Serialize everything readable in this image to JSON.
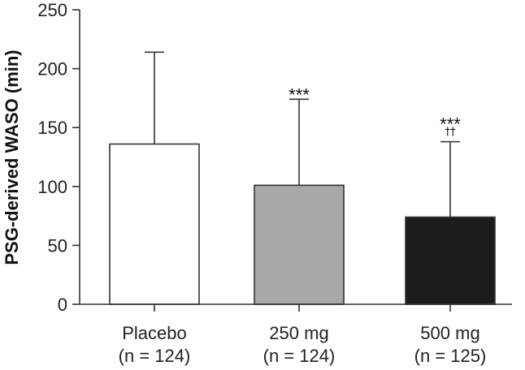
{
  "chart_data": {
    "type": "bar",
    "title": "",
    "xlabel": "",
    "ylabel": "PSG-derived WASO (min)",
    "ylim": [
      0,
      250
    ],
    "yticks": [
      0,
      50,
      100,
      150,
      200,
      250
    ],
    "categories": [
      {
        "name": "Placebo",
        "n": "(n = 124)"
      },
      {
        "name": "250 mg",
        "n": "(n = 124)"
      },
      {
        "name": "500 mg",
        "n": "(n = 125)"
      }
    ],
    "values": [
      136,
      101,
      74
    ],
    "error_upper": [
      214,
      174,
      138
    ],
    "bar_colors": [
      "#ffffff",
      "#a7a8aa",
      "#1c1c1c"
    ],
    "annotations": [
      {
        "category": "250 mg",
        "lines": [
          "***"
        ]
      },
      {
        "category": "500 mg",
        "lines": [
          "***",
          "††"
        ]
      }
    ],
    "grid": false
  }
}
